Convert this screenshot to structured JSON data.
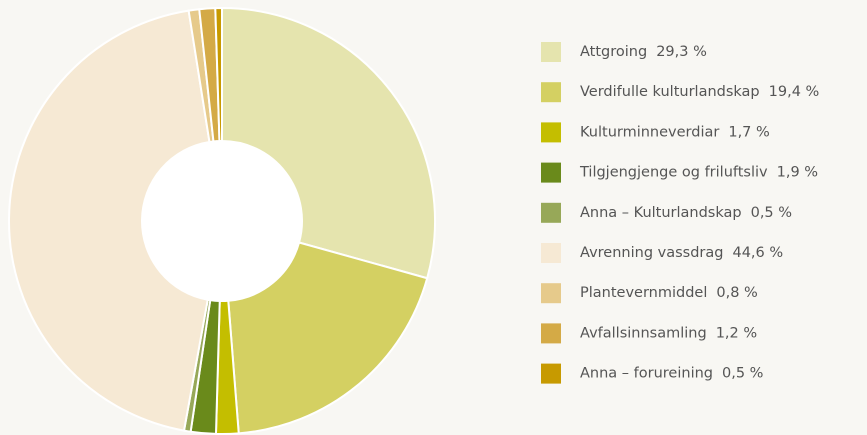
{
  "chart_data": {
    "type": "donut",
    "categories": [
      "Attgroing",
      "Verdifulle kulturlandskap",
      "Kulturminneverdiar",
      "Tilgjengjenge og friluftsliv",
      "Anna – Kulturlandskap",
      "Avrenning vassdrag",
      "Plantevernmiddel",
      "Avfallsinnsamling",
      "Anna – forureining"
    ],
    "values": [
      29.3,
      19.4,
      1.7,
      1.9,
      0.5,
      44.6,
      0.8,
      1.2,
      0.5
    ],
    "value_labels": [
      "29,3 %",
      "19,4 %",
      "1,7 %",
      "1,9 %",
      "0,5 %",
      "44,6 %",
      "0,8 %",
      "1,2 %",
      "0,5 %"
    ],
    "colors": [
      "#e5e4ae",
      "#d4d062",
      "#c4be00",
      "#6a8a1b",
      "#97a858",
      "#f6e9d4",
      "#e6ca8b",
      "#d4aa46",
      "#c79a00"
    ],
    "legend": "right"
  }
}
